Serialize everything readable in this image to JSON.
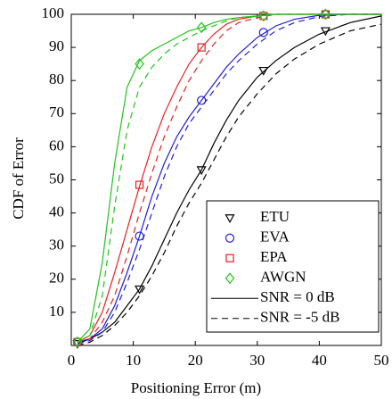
{
  "chart_data": {
    "type": "line",
    "xlabel": "Positioning Error (m)",
    "ylabel": "CDF of Error",
    "xlim": [
      0,
      50
    ],
    "ylim": [
      0,
      100
    ],
    "xticks": [
      0,
      10,
      20,
      30,
      40,
      50
    ],
    "yticks": [
      10,
      20,
      30,
      40,
      50,
      60,
      70,
      80,
      90,
      100
    ],
    "legend": "lower right",
    "x": [
      1,
      3,
      5,
      7,
      9,
      11,
      13,
      15,
      17,
      19,
      21,
      23,
      25,
      27,
      30,
      33,
      36,
      40,
      45,
      50
    ],
    "marker_x": [
      1,
      11,
      21,
      31,
      41
    ],
    "line_styles": [
      {
        "name": "SNR = 0 dB",
        "dash": "solid"
      },
      {
        "name": "SNR = -5 dB",
        "dash": "dashed"
      }
    ],
    "series": [
      {
        "name": "ETU",
        "color": "#000000",
        "marker": "triangle-down",
        "marker_values": [
          0.5,
          17,
          53,
          83,
          95
        ],
        "curves": [
          [
            0.5,
            2,
            4,
            7,
            12,
            17,
            24,
            32,
            40,
            47,
            53,
            61,
            68,
            74,
            81,
            86,
            90,
            94,
            97.5,
            99.5
          ],
          [
            0,
            1,
            3,
            6,
            10,
            15,
            21,
            28,
            36,
            43,
            49,
            56,
            63,
            69,
            76,
            82,
            86.5,
            91,
            95,
            97
          ]
        ]
      },
      {
        "name": "EVA",
        "color": "#1f1fd6",
        "marker": "circle",
        "marker_values": [
          1,
          33,
          74,
          94.5,
          100
        ],
        "curves": [
          [
            1,
            2,
            5,
            12,
            22,
            33,
            45,
            55,
            63,
            69,
            74,
            79,
            84,
            88,
            93,
            96.5,
            98.5,
            99.7,
            100,
            100
          ],
          [
            0.5,
            1.5,
            4,
            10,
            19,
            29,
            40,
            51,
            60,
            67,
            72,
            77,
            82,
            86,
            91,
            95,
            97.5,
            99.3,
            100,
            100
          ]
        ]
      },
      {
        "name": "EPA",
        "color": "#e8201e",
        "marker": "square",
        "marker_values": [
          1,
          48.5,
          90,
          99.5,
          100
        ],
        "curves": [
          [
            1,
            3,
            10,
            22,
            35,
            48,
            60,
            70,
            78,
            85,
            90,
            94,
            97,
            98.5,
            99.5,
            100,
            100,
            100,
            100,
            100
          ],
          [
            1,
            2,
            7,
            15,
            27,
            40,
            52,
            63,
            72,
            80,
            86,
            91,
            95,
            97.5,
            99,
            100,
            100,
            100,
            100,
            100
          ]
        ]
      },
      {
        "name": "AWGN",
        "color": "#22c41e",
        "marker": "diamond",
        "marker_values": [
          1,
          85,
          96,
          99.5,
          100
        ],
        "curves": [
          [
            1,
            5,
            25,
            55,
            78,
            86,
            89,
            91,
            93,
            95,
            96,
            97.5,
            98.5,
            99,
            99.5,
            100,
            100,
            100,
            100,
            100
          ],
          [
            1,
            3,
            15,
            42,
            65,
            78,
            84,
            88,
            91,
            93,
            95,
            96.5,
            98,
            99,
            99.5,
            100,
            100,
            100,
            100,
            100
          ]
        ]
      }
    ]
  }
}
